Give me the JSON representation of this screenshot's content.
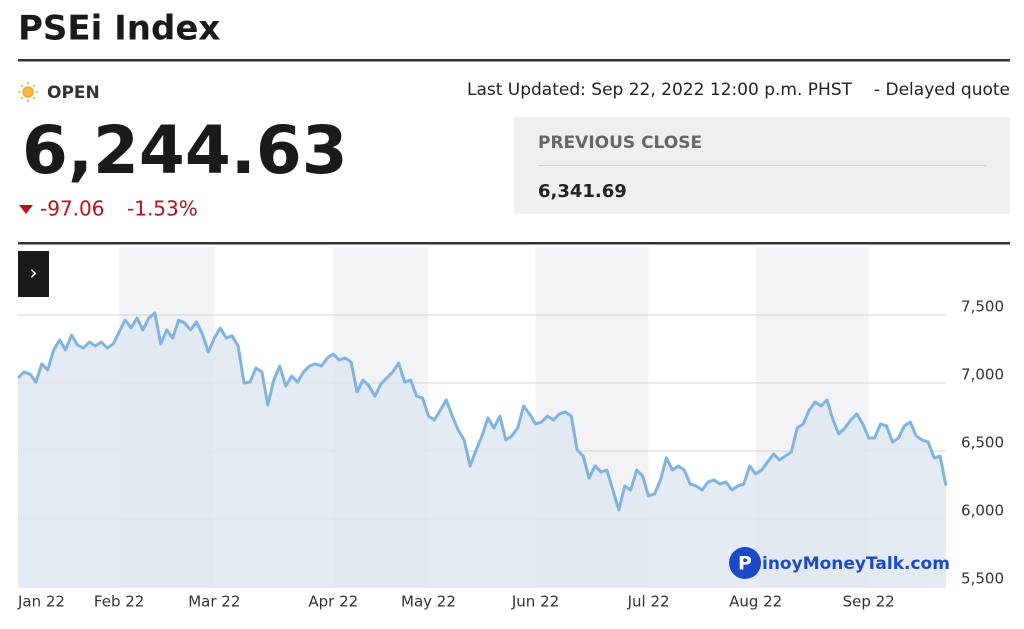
{
  "header": {
    "title": "PSEi Index"
  },
  "quote": {
    "status": "OPEN",
    "last_updated": "Last Updated: Sep 22, 2022 12:00 p.m. PHST",
    "separator": "-",
    "delay": "Delayed quote",
    "price": "6,244.63",
    "change": "-97.06",
    "change_percent": "-1.53%",
    "previous_close_label": "PREVIOUS CLOSE",
    "previous_close": "6,341.69"
  },
  "controls": {
    "expand": "›"
  },
  "watermark": {
    "icon": "P",
    "text": "inoyMoneyTalk.com"
  },
  "chart_data": {
    "type": "area",
    "color": "#80b3e0",
    "fill": "#dde6f0",
    "grid": true,
    "categories": [
      "Jan 22",
      null,
      null,
      null,
      null,
      null,
      null,
      null,
      null,
      null,
      null,
      null,
      null,
      null,
      null,
      null,
      null,
      "Feb 22",
      null,
      null,
      null,
      null,
      null,
      null,
      null,
      null,
      null,
      null,
      null,
      null,
      null,
      null,
      null,
      "Mar 22",
      null,
      null,
      null,
      null,
      null,
      null,
      null,
      null,
      null,
      null,
      null,
      null,
      null,
      null,
      null,
      null,
      null,
      null,
      null,
      "Apr 22",
      null,
      null,
      null,
      null,
      null,
      null,
      null,
      null,
      null,
      null,
      null,
      null,
      null,
      null,
      null,
      "May 22",
      null,
      null,
      null,
      null,
      null,
      null,
      null,
      null,
      null,
      null,
      null,
      null,
      null,
      null,
      null,
      null,
      null,
      "Jun 22",
      null,
      null,
      null,
      null,
      null,
      null,
      null,
      null,
      null,
      null,
      null,
      null,
      null,
      null,
      null,
      null,
      null,
      null,
      "Jul 22",
      null,
      null,
      null,
      null,
      null,
      null,
      null,
      null,
      null,
      null,
      null,
      null,
      null,
      null,
      null,
      null,
      null,
      "Aug 22",
      null,
      null,
      null,
      null,
      null,
      null,
      null,
      null,
      null,
      null,
      null,
      null,
      null,
      null,
      null,
      null,
      null,
      null,
      "Sep 22",
      null,
      null,
      null,
      null,
      null,
      null,
      null,
      null,
      null,
      null,
      null,
      null,
      null
    ],
    "values": [
      7037,
      7081,
      7066,
      7007,
      7140,
      7096,
      7243,
      7316,
      7243,
      7353,
      7279,
      7257,
      7301,
      7272,
      7301,
      7257,
      7287,
      7375,
      7463,
      7404,
      7478,
      7390,
      7478,
      7515,
      7287,
      7390,
      7331,
      7463,
      7441,
      7390,
      7449,
      7360,
      7228,
      7331,
      7404,
      7331,
      7346,
      7272,
      7000,
      7007,
      7110,
      7081,
      6838,
      7022,
      7125,
      6978,
      7051,
      7007,
      7081,
      7125,
      7140,
      7125,
      7184,
      7213,
      7169,
      7184,
      7154,
      6934,
      7022,
      6978,
      6904,
      6993,
      7037,
      7081,
      7147,
      7007,
      7022,
      6904,
      6890,
      6757,
      6728,
      6801,
      6875,
      6757,
      6654,
      6581,
      6390,
      6507,
      6610,
      6743,
      6669,
      6757,
      6581,
      6610,
      6669,
      6831,
      6772,
      6699,
      6713,
      6757,
      6728,
      6772,
      6787,
      6757,
      6507,
      6463,
      6301,
      6390,
      6346,
      6360,
      6213,
      6066,
      6243,
      6213,
      6360,
      6316,
      6169,
      6184,
      6287,
      6449,
      6360,
      6390,
      6360,
      6257,
      6243,
      6213,
      6272,
      6287,
      6257,
      6272,
      6213,
      6243,
      6257,
      6390,
      6331,
      6360,
      6419,
      6478,
      6434,
      6463,
      6493,
      6669,
      6699,
      6801,
      6860,
      6831,
      6875,
      6728,
      6625,
      6669,
      6728,
      6772,
      6699,
      6596,
      6596,
      6699,
      6684,
      6566,
      6596,
      6684,
      6713,
      6610,
      6581,
      6566,
      6449,
      6463,
      6244.63
    ],
    "ylim": [
      5500,
      8000
    ],
    "yticks": [
      {
        "value": 5500,
        "label": "5,500"
      },
      {
        "value": 6000,
        "label": "6,000"
      },
      {
        "value": 6500,
        "label": "6,500"
      },
      {
        "value": 7000,
        "label": "7,000"
      },
      {
        "value": 7500,
        "label": "7,500"
      }
    ]
  }
}
